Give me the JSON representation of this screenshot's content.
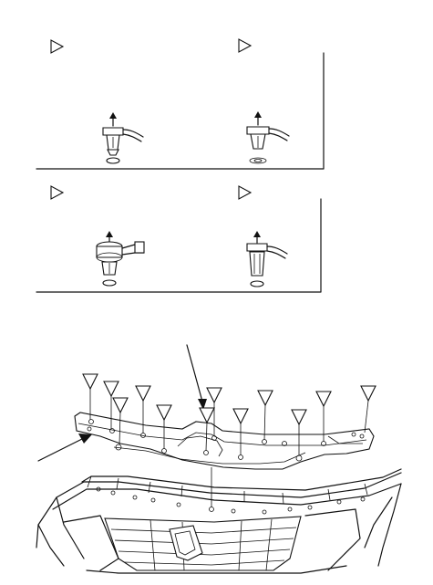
{
  "figure": {
    "description_free": true,
    "clip_panels": [
      {
        "id": "A",
        "marker": "triangle",
        "clip_style": "pin-pull",
        "removal": "up",
        "base": "solid"
      },
      {
        "id": "B",
        "marker": "triangle",
        "clip_style": "pin-pull",
        "removal": "up",
        "base": "washer"
      },
      {
        "id": "C",
        "marker": "triangle",
        "clip_style": "screw-pin",
        "removal": "up",
        "base": "solid"
      },
      {
        "id": "D",
        "marker": "triangle",
        "clip_style": "split-pin",
        "removal": "up",
        "base": "solid"
      }
    ],
    "callout_count": 12,
    "colors": {
      "ink": "#111111",
      "paper": "#ffffff"
    }
  }
}
